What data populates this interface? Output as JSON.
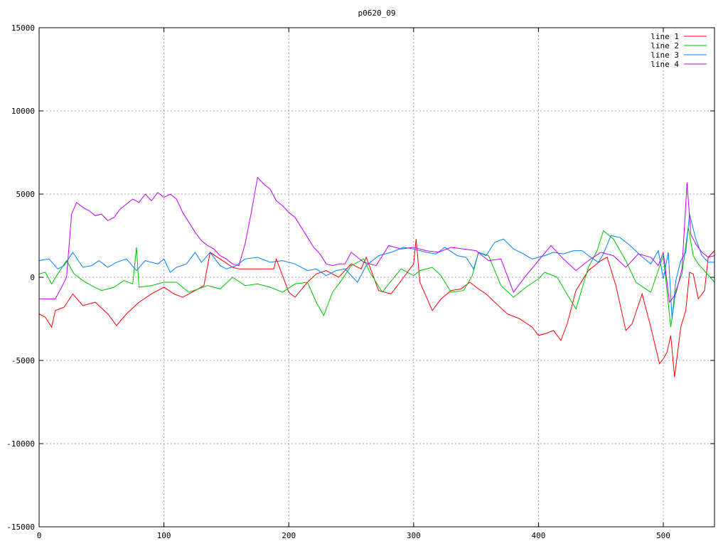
{
  "chart_data": {
    "type": "line",
    "title": "p0620_09",
    "xlabel": "",
    "ylabel": "",
    "xlim": [
      0,
      541
    ],
    "ylim": [
      -15000,
      15000
    ],
    "xticks": [
      0,
      100,
      200,
      300,
      400,
      500
    ],
    "yticks": [
      -15000,
      -10000,
      -5000,
      0,
      5000,
      10000,
      15000
    ],
    "grid": true,
    "legend_position": "top-right",
    "series": [
      {
        "name": "line 1",
        "color": "#ff0000",
        "x": [
          0,
          5,
          10,
          13,
          20,
          27,
          35,
          45,
          55,
          62,
          70,
          80,
          90,
          95,
          100,
          108,
          115,
          125,
          132,
          137,
          145,
          155,
          160,
          170,
          180,
          188,
          190,
          200,
          205,
          215,
          222,
          230,
          240,
          250,
          258,
          262,
          272,
          282,
          292,
          300,
          302,
          305,
          315,
          322,
          330,
          338,
          345,
          352,
          358,
          365,
          375,
          385,
          395,
          400,
          405,
          412,
          418,
          423,
          430,
          440,
          450,
          455,
          462,
          470,
          475,
          483,
          490,
          497,
          500,
          503,
          506,
          509,
          514,
          518,
          521,
          524,
          528,
          533,
          536,
          541
        ],
        "y": [
          -2200,
          -2400,
          -3000,
          -2000,
          -1800,
          -1000,
          -1700,
          -1500,
          -2200,
          -2900,
          -2200,
          -1500,
          -1000,
          -800,
          -600,
          -1000,
          -1200,
          -800,
          -500,
          1500,
          1100,
          600,
          500,
          500,
          500,
          500,
          1100,
          -900,
          -1200,
          -300,
          200,
          400,
          0,
          800,
          500,
          1200,
          -800,
          -1000,
          0,
          800,
          2300,
          -300,
          -2000,
          -1300,
          -800,
          -700,
          -300,
          -700,
          -1000,
          -1500,
          -2200,
          -2500,
          -3000,
          -3500,
          -3400,
          -3200,
          -3800,
          -2800,
          -800,
          400,
          1000,
          1200,
          -500,
          -3200,
          -2800,
          -1000,
          -3000,
          -5200,
          -4900,
          -4500,
          -3500,
          -6000,
          -3000,
          -2000,
          300,
          200,
          -1300,
          -800,
          1200,
          1600
        ]
      },
      {
        "name": "line 2",
        "color": "#00c000",
        "x": [
          0,
          5,
          10,
          15,
          22,
          28,
          35,
          42,
          50,
          55,
          60,
          68,
          75,
          78,
          80,
          90,
          100,
          110,
          120,
          135,
          145,
          155,
          165,
          175,
          185,
          195,
          205,
          215,
          222,
          228,
          235,
          242,
          250,
          260,
          265,
          275,
          280,
          290,
          300,
          305,
          315,
          322,
          330,
          340,
          347,
          352,
          360,
          370,
          380,
          390,
          400,
          405,
          415,
          422,
          430,
          440,
          447,
          452,
          460,
          470,
          478,
          490,
          500,
          506,
          510,
          515,
          520,
          524,
          528,
          534,
          541
        ],
        "y": [
          200,
          300,
          -400,
          200,
          1000,
          200,
          -200,
          -500,
          -800,
          -700,
          -600,
          -200,
          -400,
          1800,
          -600,
          -500,
          -300,
          -300,
          -900,
          -500,
          -700,
          0,
          -500,
          -400,
          -600,
          -900,
          -400,
          -300,
          -1500,
          -2300,
          -900,
          -200,
          700,
          1100,
          300,
          -900,
          -400,
          500,
          100,
          400,
          600,
          100,
          -900,
          -800,
          100,
          1500,
          1300,
          -500,
          -1200,
          -600,
          -100,
          300,
          0,
          -900,
          -1900,
          600,
          1600,
          2800,
          2300,
          1000,
          -300,
          -900,
          1300,
          -3000,
          -800,
          200,
          3000,
          1300,
          800,
          300,
          -300
        ]
      },
      {
        "name": "line 3",
        "color": "#0080ff",
        "x": [
          0,
          8,
          15,
          20,
          27,
          35,
          42,
          48,
          55,
          62,
          70,
          78,
          85,
          95,
          100,
          105,
          110,
          118,
          125,
          130,
          137,
          145,
          150,
          158,
          165,
          175,
          185,
          195,
          205,
          215,
          222,
          230,
          238,
          245,
          255,
          262,
          272,
          282,
          292,
          300,
          310,
          318,
          325,
          335,
          342,
          348,
          352,
          358,
          365,
          372,
          380,
          388,
          395,
          405,
          412,
          420,
          428,
          435,
          440,
          448,
          452,
          458,
          465,
          472,
          482,
          490,
          496,
          500,
          504,
          507,
          510,
          514,
          518,
          521,
          526,
          531,
          536,
          541
        ],
        "y": [
          1000,
          1100,
          500,
          700,
          1500,
          600,
          700,
          1000,
          600,
          900,
          1100,
          400,
          1000,
          800,
          1100,
          300,
          600,
          800,
          1500,
          900,
          1500,
          700,
          500,
          700,
          1100,
          1200,
          900,
          1000,
          800,
          400,
          500,
          100,
          400,
          500,
          -300,
          700,
          1300,
          1500,
          1800,
          1700,
          1500,
          1400,
          1800,
          1300,
          1200,
          500,
          1500,
          1300,
          2100,
          2300,
          1700,
          1400,
          1100,
          1300,
          1500,
          1400,
          1600,
          1600,
          1300,
          900,
          1400,
          2500,
          2400,
          2000,
          1300,
          800,
          1600,
          -100,
          1500,
          -2500,
          -200,
          1000,
          1500,
          3800,
          2300,
          1300,
          900,
          900
        ]
      },
      {
        "name": "line 4",
        "color": "#c000ff",
        "x": [
          0,
          5,
          10,
          13,
          18,
          22,
          26,
          30,
          35,
          40,
          45,
          50,
          55,
          60,
          65,
          70,
          75,
          80,
          85,
          90,
          95,
          100,
          105,
          110,
          115,
          120,
          125,
          130,
          135,
          140,
          145,
          150,
          155,
          160,
          165,
          170,
          175,
          180,
          185,
          190,
          195,
          200,
          205,
          210,
          215,
          220,
          225,
          230,
          235,
          240,
          245,
          250,
          260,
          270,
          280,
          290,
          300,
          310,
          320,
          330,
          340,
          350,
          360,
          370,
          380,
          390,
          400,
          410,
          420,
          430,
          440,
          450,
          460,
          470,
          480,
          490,
          496,
          500,
          505,
          510,
          515,
          519,
          522,
          526,
          531,
          536,
          541
        ],
        "y": [
          -1300,
          -1300,
          -1300,
          -1300,
          -600,
          0,
          3800,
          4500,
          4200,
          4000,
          3700,
          3800,
          3400,
          3600,
          4100,
          4400,
          4700,
          4500,
          5000,
          4600,
          5100,
          4800,
          5000,
          4700,
          3900,
          3300,
          2700,
          2200,
          1900,
          1700,
          1300,
          1100,
          800,
          700,
          2000,
          3900,
          6000,
          5600,
          5300,
          4600,
          4300,
          3900,
          3600,
          3000,
          2400,
          1800,
          1400,
          800,
          700,
          800,
          800,
          1500,
          900,
          700,
          1900,
          1700,
          1800,
          1600,
          1500,
          1800,
          1700,
          1600,
          1000,
          1100,
          -900,
          100,
          1000,
          1900,
          1100,
          400,
          1000,
          1500,
          1300,
          600,
          1400,
          1200,
          700,
          1500,
          -1500,
          -1000,
          500,
          5700,
          2600,
          2000,
          1500,
          1200,
          1300
        ]
      }
    ]
  }
}
